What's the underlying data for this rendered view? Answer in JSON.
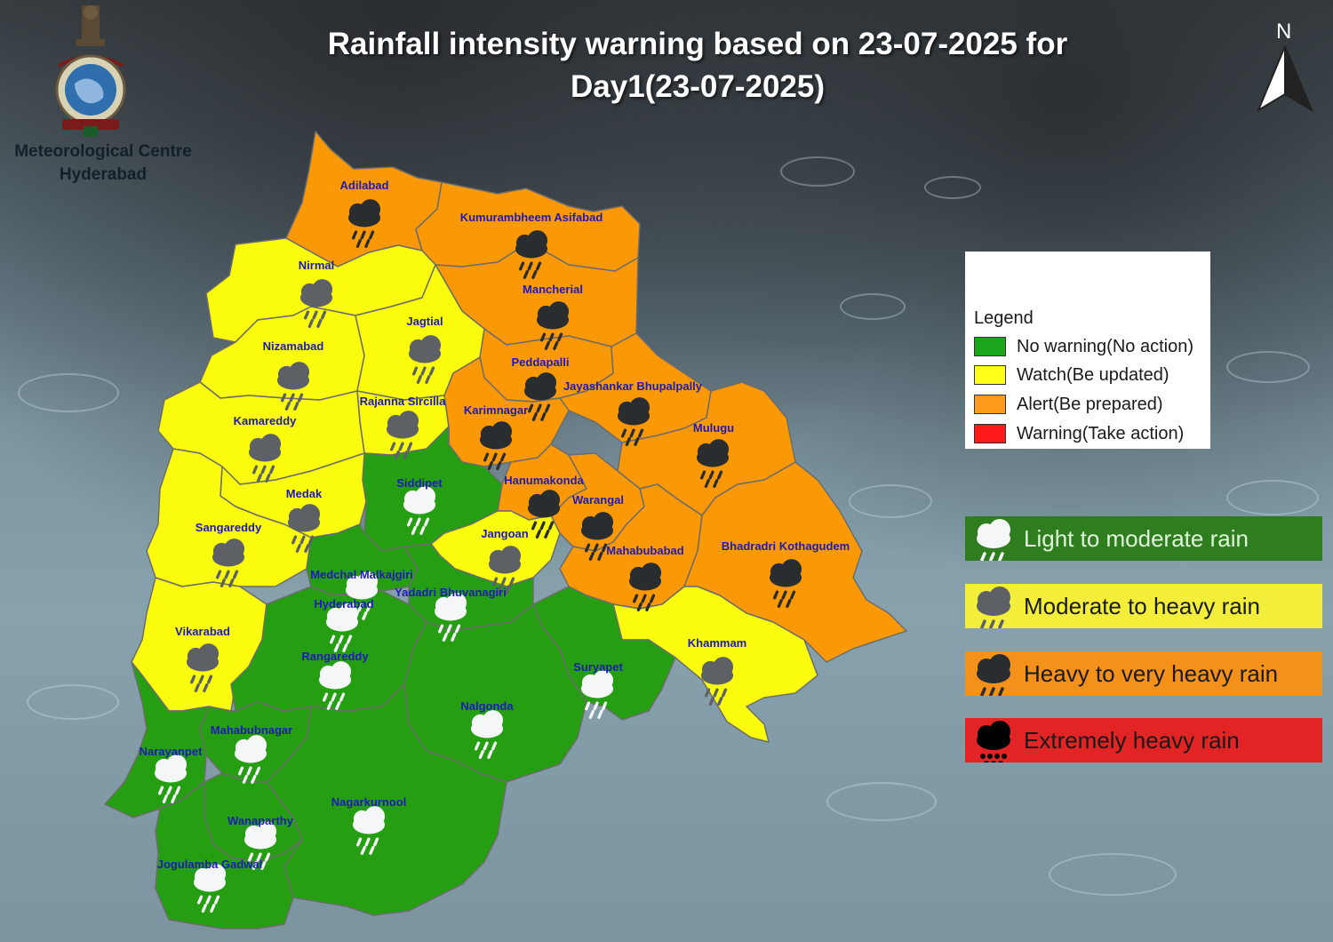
{
  "title_line1": "Rainfall intensity warning based on 23-07-2025 for",
  "title_line2": "Day1(23-07-2025)",
  "centre_line1": "Meteorological Centre",
  "centre_line2": "Hyderabad",
  "north_label": "N",
  "legend": {
    "title": "Legend",
    "items": [
      {
        "label": "No warning(No action)",
        "color": "#1aa51a"
      },
      {
        "label": "Watch(Be updated)",
        "color": "#ffff1a"
      },
      {
        "label": "Alert(Be prepared)",
        "color": "#ff9a1a"
      },
      {
        "label": "Warning(Take action)",
        "color": "#ff1a1a"
      }
    ]
  },
  "rain_key": [
    {
      "label": "Light to moderate rain",
      "color": "#2e7d1e",
      "icon": "light-cloud-rain-icon"
    },
    {
      "label": "Moderate to heavy rain",
      "color": "#f3ee3a",
      "icon": "grey-cloud-rain-icon"
    },
    {
      "label": "Heavy to very heavy rain",
      "color": "#f4911a",
      "icon": "dark-cloud-rain-icon"
    },
    {
      "label": "Extremely heavy rain",
      "color": "#e22424",
      "icon": "black-cloud-heavy-rain-icon"
    }
  ],
  "category_colors": {
    "green": "#259e12",
    "yellow": "#fbfb0e",
    "orange": "#fb9805"
  },
  "districts": [
    {
      "name": "Adilabad",
      "category": "orange"
    },
    {
      "name": "Kumurambheem Asifabad",
      "category": "orange"
    },
    {
      "name": "Mancherial",
      "category": "orange"
    },
    {
      "name": "Nirmal",
      "category": "yellow"
    },
    {
      "name": "Nizamabad",
      "category": "yellow"
    },
    {
      "name": "Jagtial",
      "category": "yellow"
    },
    {
      "name": "Peddapalli",
      "category": "orange"
    },
    {
      "name": "Jayashankar Bhupalpally",
      "category": "orange"
    },
    {
      "name": "Rajanna Sircilla",
      "category": "yellow"
    },
    {
      "name": "Karimnagar",
      "category": "orange"
    },
    {
      "name": "Kamareddy",
      "category": "yellow"
    },
    {
      "name": "Mulugu",
      "category": "orange"
    },
    {
      "name": "Siddipet",
      "category": "green"
    },
    {
      "name": "Medak",
      "category": "yellow"
    },
    {
      "name": "Hanumakonda",
      "category": "orange"
    },
    {
      "name": "Warangal",
      "category": "orange"
    },
    {
      "name": "Sangareddy",
      "category": "yellow"
    },
    {
      "name": "Jangoan",
      "category": "yellow"
    },
    {
      "name": "Mahabubabad",
      "category": "orange"
    },
    {
      "name": "Bhadradri Kothagudem",
      "category": "orange"
    },
    {
      "name": "Medchal Malkajgiri",
      "category": "green"
    },
    {
      "name": "Yadadri Bhuvanagiri",
      "category": "green"
    },
    {
      "name": "Hyderabad",
      "category": "green"
    },
    {
      "name": "Vikarabad",
      "category": "yellow"
    },
    {
      "name": "Khammam",
      "category": "yellow"
    },
    {
      "name": "Rangareddy",
      "category": "green"
    },
    {
      "name": "Suryapet",
      "category": "green"
    },
    {
      "name": "Nalgonda",
      "category": "green"
    },
    {
      "name": "Mahabubnagar",
      "category": "green"
    },
    {
      "name": "Narayanpet",
      "category": "green"
    },
    {
      "name": "Nagarkurnool",
      "category": "green"
    },
    {
      "name": "Wanaparthy",
      "category": "green"
    },
    {
      "name": "Jogulamba Gadwal",
      "category": "green"
    }
  ]
}
